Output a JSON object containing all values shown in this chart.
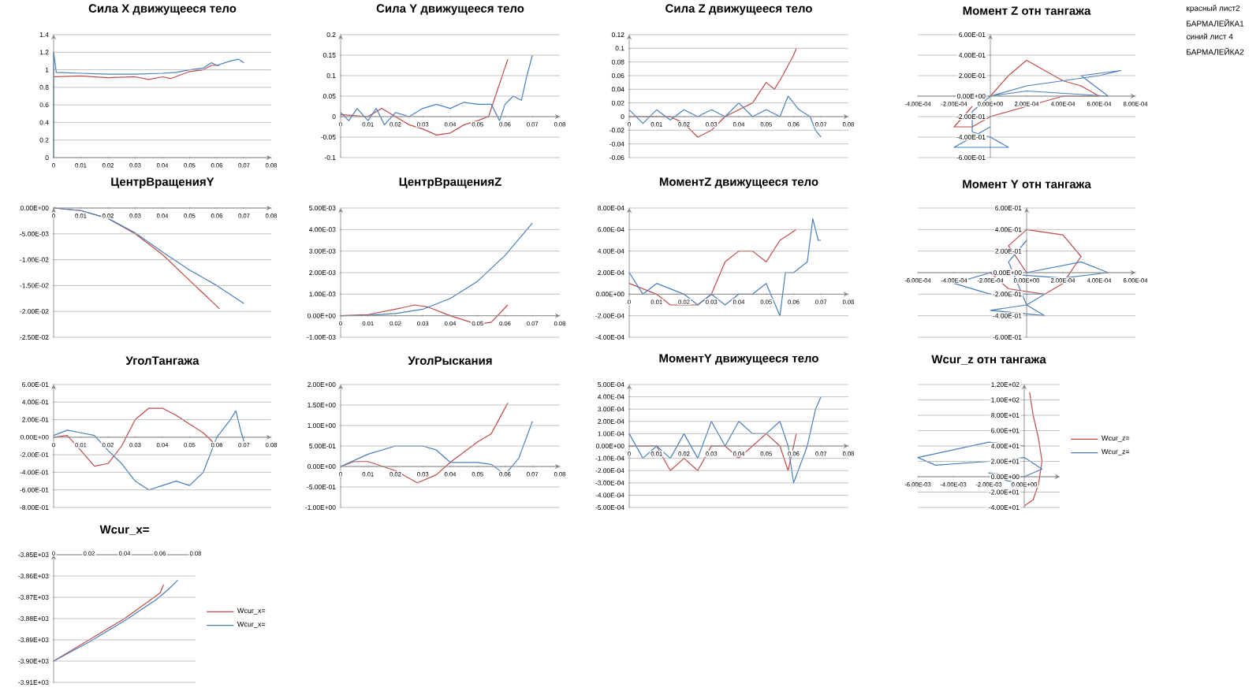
{
  "chart_data": [
    {
      "type": "line",
      "title": "Сила X движущееся тело",
      "xlim": [
        0,
        0.08
      ],
      "ylim": [
        0,
        1.4
      ],
      "xticks": [
        0,
        0.01,
        0.02,
        0.03,
        0.04,
        0.05,
        0.06,
        0.07,
        0.08
      ],
      "yticks": [
        0,
        0.2,
        0.4,
        0.6,
        0.8,
        1,
        1.2,
        1.4
      ],
      "grid": "y",
      "series": [
        {
          "color": "#be4b48",
          "x": [
            0,
            0.01,
            0.02,
            0.03,
            0.035,
            0.04,
            0.043,
            0.05,
            0.055,
            0.058,
            0.061
          ],
          "values": [
            0.92,
            0.93,
            0.91,
            0.92,
            0.89,
            0.92,
            0.9,
            0.98,
            1.0,
            1.05,
            1.05
          ]
        },
        {
          "color": "#4a7ebb",
          "x": [
            0,
            0,
            0.001,
            0.01,
            0.02,
            0.03,
            0.04,
            0.045,
            0.05,
            0.055,
            0.058,
            0.06,
            0.065,
            0.068,
            0.07
          ],
          "values": [
            0,
            1.2,
            0.97,
            0.96,
            0.95,
            0.95,
            0.96,
            0.97,
            1.0,
            1.02,
            1.08,
            1.05,
            1.1,
            1.12,
            1.08
          ]
        }
      ]
    },
    {
      "type": "line",
      "title": "Сила Y движущееся тело",
      "xlim": [
        0,
        0.08
      ],
      "ylim": [
        -0.1,
        0.2
      ],
      "xticks": [
        0,
        0.01,
        0.02,
        0.03,
        0.04,
        0.05,
        0.06,
        0.07,
        0.08
      ],
      "yticks": [
        -0.1,
        -0.05,
        0,
        0.05,
        0.1,
        0.15,
        0.2
      ],
      "grid": "y",
      "series": [
        {
          "color": "#be4b48",
          "x": [
            0,
            0.01,
            0.015,
            0.02,
            0.025,
            0.03,
            0.035,
            0.04,
            0.045,
            0.05,
            0.054,
            0.057,
            0.06,
            0.061
          ],
          "values": [
            0.005,
            0.0,
            0.02,
            0.0,
            -0.02,
            -0.03,
            -0.045,
            -0.04,
            -0.02,
            -0.01,
            0.0,
            0.06,
            0.12,
            0.14
          ]
        },
        {
          "color": "#4a7ebb",
          "x": [
            0,
            0.003,
            0.006,
            0.01,
            0.013,
            0.016,
            0.02,
            0.025,
            0.03,
            0.035,
            0.04,
            0.045,
            0.05,
            0.055,
            0.058,
            0.06,
            0.063,
            0.066,
            0.068,
            0.07
          ],
          "values": [
            0.01,
            -0.01,
            0.02,
            -0.01,
            0.02,
            -0.02,
            0.01,
            0.0,
            0.02,
            0.03,
            0.02,
            0.035,
            0.03,
            0.03,
            -0.01,
            0.03,
            0.05,
            0.04,
            0.1,
            0.15
          ]
        }
      ]
    },
    {
      "type": "line",
      "title": "Сила Z движущееся тело",
      "xlim": [
        0,
        0.08
      ],
      "ylim": [
        -0.06,
        0.12
      ],
      "xticks": [
        0,
        0.01,
        0.02,
        0.03,
        0.04,
        0.05,
        0.06,
        0.07,
        0.08
      ],
      "yticks": [
        -0.06,
        -0.04,
        -0.02,
        0,
        0.02,
        0.04,
        0.06,
        0.08,
        0.1,
        0.12
      ],
      "grid": "y",
      "series": [
        {
          "color": "#be4b48",
          "x": [
            0,
            0.015,
            0.02,
            0.025,
            0.03,
            0.035,
            0.04,
            0.045,
            0.05,
            0.053,
            0.056,
            0.06,
            0.061
          ],
          "values": [
            0.0,
            0.0,
            -0.01,
            -0.03,
            -0.02,
            0.0,
            0.01,
            0.02,
            0.05,
            0.04,
            0.06,
            0.09,
            0.1
          ]
        },
        {
          "color": "#4a7ebb",
          "x": [
            0,
            0.005,
            0.01,
            0.015,
            0.02,
            0.025,
            0.03,
            0.035,
            0.04,
            0.045,
            0.05,
            0.055,
            0.058,
            0.062,
            0.066,
            0.068,
            0.07
          ],
          "values": [
            0.01,
            -0.01,
            0.01,
            -0.005,
            0.01,
            0.0,
            0.01,
            0.0,
            0.02,
            0.0,
            0.01,
            0.0,
            0.03,
            0.01,
            0.0,
            -0.02,
            -0.03
          ]
        }
      ]
    },
    {
      "type": "line",
      "title": "Момент Z отн тангажа",
      "xlim": [
        -0.0004,
        0.0008
      ],
      "ylim": [
        -0.6,
        0.6
      ],
      "xticks": [
        {
          "value": -0.0004,
          "label": "-4.00E-04"
        },
        {
          "value": -0.0002,
          "label": "-2.00E-04"
        },
        {
          "value": 0,
          "label": "0.00E+00"
        },
        {
          "value": 0.0002,
          "label": "2.00E-04"
        },
        {
          "value": 0.0004,
          "label": "4.00E-04"
        },
        {
          "value": 0.0006,
          "label": "6.00E-04"
        },
        {
          "value": 0.0008,
          "label": "8.00E-04"
        }
      ],
      "yticks": [
        {
          "value": -0.6,
          "label": "-6.00E-01"
        },
        {
          "value": -0.4,
          "label": "-4.00E-01"
        },
        {
          "value": -0.2,
          "label": "-2.00E-01"
        },
        {
          "value": 0,
          "label": "0.00E+00"
        },
        {
          "value": 0.2,
          "label": "2.00E-01"
        },
        {
          "value": 0.4,
          "label": "4.00E-01"
        },
        {
          "value": 0.6,
          "label": "6.00E-01"
        }
      ],
      "grid": "y",
      "series": [
        {
          "color": "#be4b48",
          "x": [
            0,
            0.0001,
            0.0002,
            0.0003,
            0.0004,
            0.0005,
            0.0006,
            0.0004,
            0.0002,
            0,
            -0.0001,
            -0.0002,
            -0.0001
          ],
          "values": [
            0,
            0.2,
            0.35,
            0.25,
            0.15,
            0.1,
            0.0,
            0.0,
            -0.1,
            -0.2,
            -0.3,
            -0.3,
            -0.1
          ]
        },
        {
          "color": "#4a7ebb",
          "x": [
            0,
            0.0002,
            0.0004,
            0.0006,
            0.00072,
            0.0005,
            0.00065,
            0.0002,
            0,
            -0.0001,
            -0.0001,
            0,
            0.0001,
            -0.0002,
            0
          ],
          "values": [
            0,
            0.1,
            0.15,
            0.2,
            0.25,
            0.2,
            0.0,
            0.05,
            0,
            -0.15,
            -0.35,
            -0.4,
            -0.5,
            -0.5,
            -0.3
          ]
        }
      ]
    },
    {
      "type": "line",
      "title": "ЦентрВращенияY",
      "xlim": [
        0,
        0.08
      ],
      "ylim": [
        -0.025,
        0
      ],
      "xticks": [
        0,
        0.01,
        0.02,
        0.03,
        0.04,
        0.05,
        0.06,
        0.07,
        0.08
      ],
      "yticks": [
        {
          "value": -0.025,
          "label": "-2.50E-02"
        },
        {
          "value": -0.02,
          "label": "-2.00E-02"
        },
        {
          "value": -0.015,
          "label": "-1.50E-02"
        },
        {
          "value": -0.01,
          "label": "-1.00E-02"
        },
        {
          "value": -0.005,
          "label": "-5.00E-03"
        },
        {
          "value": 0,
          "label": "0.00E+00"
        }
      ],
      "grid": "y",
      "series": [
        {
          "color": "#be4b48",
          "x": [
            0,
            0.01,
            0.02,
            0.03,
            0.04,
            0.05,
            0.061
          ],
          "values": [
            0,
            -0.0005,
            -0.002,
            -0.005,
            -0.009,
            -0.014,
            -0.0195
          ]
        },
        {
          "color": "#4a7ebb",
          "x": [
            0,
            0.01,
            0.02,
            0.03,
            0.04,
            0.05,
            0.06,
            0.07
          ],
          "values": [
            0,
            -0.0005,
            -0.002,
            -0.0048,
            -0.0085,
            -0.012,
            -0.015,
            -0.0185
          ]
        }
      ]
    },
    {
      "type": "line",
      "title": "ЦентрВращенияZ",
      "xlim": [
        0,
        0.08
      ],
      "ylim": [
        -0.001,
        0.005
      ],
      "xticks": [
        0,
        0.01,
        0.02,
        0.03,
        0.04,
        0.05,
        0.06,
        0.07,
        0.08
      ],
      "yticks": [
        {
          "value": -0.001,
          "label": "-1.00E-03"
        },
        {
          "value": 0,
          "label": "0.00E+00"
        },
        {
          "value": 0.001,
          "label": "1.00E-03"
        },
        {
          "value": 0.002,
          "label": "2.00E-03"
        },
        {
          "value": 0.003,
          "label": "3.00E-03"
        },
        {
          "value": 0.004,
          "label": "4.00E-03"
        },
        {
          "value": 0.005,
          "label": "5.00E-03"
        }
      ],
      "grid": "y",
      "series": [
        {
          "color": "#be4b48",
          "x": [
            0,
            0.01,
            0.02,
            0.027,
            0.032,
            0.04,
            0.05,
            0.055,
            0.061
          ],
          "values": [
            0,
            5e-05,
            0.0003,
            0.0005,
            0.0004,
            0.0,
            -0.0004,
            -0.0003,
            0.0005
          ]
        },
        {
          "color": "#4a7ebb",
          "x": [
            0,
            0.01,
            0.02,
            0.03,
            0.04,
            0.05,
            0.06,
            0.07
          ],
          "values": [
            0,
            2e-05,
            0.0001,
            0.0003,
            0.0008,
            0.0016,
            0.0028,
            0.0043
          ]
        }
      ]
    },
    {
      "type": "line",
      "title": "МоментZ движущееся тело",
      "xlim": [
        0,
        0.08
      ],
      "ylim": [
        -0.0004,
        0.0008
      ],
      "xticks": [
        0,
        0.01,
        0.02,
        0.03,
        0.04,
        0.05,
        0.06,
        0.07,
        0.08
      ],
      "yticks": [
        {
          "value": -0.0004,
          "label": "-4.00E-04"
        },
        {
          "value": -0.0002,
          "label": "-2.00E-04"
        },
        {
          "value": 0,
          "label": "0.00E+00"
        },
        {
          "value": 0.0002,
          "label": "2.00E-04"
        },
        {
          "value": 0.0004,
          "label": "4.00E-04"
        },
        {
          "value": 0.0006,
          "label": "6.00E-04"
        },
        {
          "value": 0.0008,
          "label": "8.00E-04"
        }
      ],
      "grid": "y",
      "series": [
        {
          "color": "#be4b48",
          "x": [
            0,
            0.01,
            0.015,
            0.02,
            0.025,
            0.03,
            0.035,
            0.04,
            0.045,
            0.05,
            0.055,
            0.061
          ],
          "values": [
            0.0001,
            0.0,
            -0.0001,
            -0.0001,
            -0.0001,
            0.0,
            0.0003,
            0.0004,
            0.0004,
            0.0003,
            0.0005,
            0.0006
          ]
        },
        {
          "color": "#4a7ebb",
          "x": [
            0,
            0.005,
            0.01,
            0.02,
            0.025,
            0.03,
            0.035,
            0.04,
            0.045,
            0.05,
            0.055,
            0.057,
            0.06,
            0.065,
            0.067,
            0.069,
            0.07
          ],
          "values": [
            0.0002,
            0.0,
            0.0001,
            0.0,
            -0.0001,
            0.0,
            -0.0001,
            0.0,
            0.0,
            0.0001,
            -0.0002,
            0.0002,
            0.0002,
            0.0003,
            0.0007,
            0.0005,
            0.0005
          ]
        }
      ]
    },
    {
      "type": "line",
      "title": "Момент Y  отн тангажа",
      "xlim": [
        -0.0006,
        0.0006
      ],
      "ylim": [
        -0.6,
        0.6
      ],
      "xticks": [
        {
          "value": -0.0006,
          "label": "-6.00E-04"
        },
        {
          "value": -0.0004,
          "label": "-4.00E-04"
        },
        {
          "value": -0.0002,
          "label": "-2.00E-04"
        },
        {
          "value": 0,
          "label": "0.00E+00"
        },
        {
          "value": 0.0002,
          "label": "2.00E-04"
        },
        {
          "value": 0.0004,
          "label": "4.00E-04"
        },
        {
          "value": 0.0006,
          "label": "6.00E-04"
        }
      ],
      "yticks": [
        {
          "value": -0.6,
          "label": "-6.00E-01"
        },
        {
          "value": -0.4,
          "label": "-4.00E-01"
        },
        {
          "value": -0.2,
          "label": "-2.00E-01"
        },
        {
          "value": 0,
          "label": "0.00E+00"
        },
        {
          "value": 0.2,
          "label": "2.00E-01"
        },
        {
          "value": 0.4,
          "label": "4.00E-01"
        },
        {
          "value": 0.6,
          "label": "6.00E-01"
        }
      ],
      "grid": "y",
      "series": [
        {
          "color": "#be4b48",
          "x": [
            0,
            -0.0001,
            0,
            0.0002,
            0.0003,
            0.0002,
            0.0001,
            -0.0001,
            -0.0002
          ],
          "values": [
            0,
            0.25,
            0.4,
            0.35,
            0.15,
            -0.1,
            -0.2,
            -0.15,
            0
          ]
        },
        {
          "color": "#4a7ebb",
          "x": [
            0,
            0.0003,
            0.00045,
            0.0002,
            -0.0002,
            -0.0004,
            -0.0002,
            0.0001,
            0,
            -0.0002,
            0.0001,
            0,
            -0.0001,
            0
          ],
          "values": [
            0,
            0.1,
            0,
            -0.05,
            0,
            -0.1,
            -0.2,
            -0.2,
            -0.3,
            -0.35,
            -0.4,
            -0.3,
            0.1,
            0.3
          ]
        }
      ]
    },
    {
      "type": "line",
      "title": "УголТангажа",
      "xlim": [
        0,
        0.08
      ],
      "ylim": [
        -0.8,
        0.6
      ],
      "xticks": [
        0,
        0.01,
        0.02,
        0.03,
        0.04,
        0.05,
        0.06,
        0.07,
        0.08
      ],
      "yticks": [
        {
          "value": -0.8,
          "label": "-8.00E-01"
        },
        {
          "value": -0.6,
          "label": "-6.00E-01"
        },
        {
          "value": -0.4,
          "label": "-4.00E-01"
        },
        {
          "value": -0.2,
          "label": "-2.00E-01"
        },
        {
          "value": 0,
          "label": "0.00E+00"
        },
        {
          "value": 0.2,
          "label": "2.00E-01"
        },
        {
          "value": 0.4,
          "label": "4.00E-01"
        },
        {
          "value": 0.6,
          "label": "6.00E-01"
        }
      ],
      "grid": "y",
      "series": [
        {
          "color": "#be4b48",
          "x": [
            0,
            0.005,
            0.01,
            0.015,
            0.02,
            0.025,
            0.03,
            0.035,
            0.04,
            0.045,
            0.05,
            0.055,
            0.06
          ],
          "values": [
            0,
            0.02,
            -0.15,
            -0.33,
            -0.3,
            -0.1,
            0.2,
            0.33,
            0.33,
            0.25,
            0.15,
            0.05,
            -0.1
          ]
        },
        {
          "color": "#4a7ebb",
          "x": [
            0,
            0.005,
            0.01,
            0.015,
            0.02,
            0.025,
            0.03,
            0.035,
            0.04,
            0.045,
            0.05,
            0.055,
            0.06,
            0.065,
            0.067,
            0.069,
            0.07
          ],
          "values": [
            0.02,
            0.08,
            0.05,
            0.02,
            -0.15,
            -0.3,
            -0.5,
            -0.6,
            -0.55,
            -0.5,
            -0.55,
            -0.4,
            0,
            0.2,
            0.3,
            0.05,
            -0.05
          ]
        }
      ]
    },
    {
      "type": "line",
      "title": "УголРыскания",
      "xlim": [
        0,
        0.08
      ],
      "ylim": [
        -1,
        2
      ],
      "xticks": [
        0,
        0.01,
        0.02,
        0.03,
        0.04,
        0.05,
        0.06,
        0.07,
        0.08
      ],
      "yticks": [
        {
          "value": -1,
          "label": "-1.00E+00"
        },
        {
          "value": -0.5,
          "label": "-5.00E-01"
        },
        {
          "value": 0,
          "label": "0.00E+00"
        },
        {
          "value": 0.5,
          "label": "5.00E-01"
        },
        {
          "value": 1,
          "label": "1.00E+00"
        },
        {
          "value": 1.5,
          "label": "1.50E+00"
        },
        {
          "value": 2,
          "label": "2.00E+00"
        }
      ],
      "grid": "y",
      "series": [
        {
          "color": "#be4b48",
          "x": [
            0,
            0.005,
            0.01,
            0.02,
            0.028,
            0.035,
            0.04,
            0.05,
            0.055,
            0.061
          ],
          "values": [
            0,
            0.12,
            0.12,
            -0.1,
            -0.4,
            -0.2,
            0.1,
            0.6,
            0.8,
            1.55
          ]
        },
        {
          "color": "#4a7ebb",
          "x": [
            0,
            0.01,
            0.02,
            0.03,
            0.035,
            0.04,
            0.05,
            0.055,
            0.06,
            0.065,
            0.07
          ],
          "values": [
            0,
            0.3,
            0.5,
            0.5,
            0.4,
            0.1,
            0.1,
            0.05,
            -0.2,
            0.2,
            1.1
          ]
        }
      ]
    },
    {
      "type": "line",
      "title": "МоментY движущееся тело",
      "xlim": [
        0,
        0.08
      ],
      "ylim": [
        -0.0005,
        0.0005
      ],
      "xticks": [
        0,
        0.01,
        0.02,
        0.03,
        0.04,
        0.05,
        0.06,
        0.07,
        0.08
      ],
      "yticks": [
        {
          "value": -0.0005,
          "label": "-5.00E-04"
        },
        {
          "value": -0.0004,
          "label": "-4.00E-04"
        },
        {
          "value": -0.0003,
          "label": "-3.00E-04"
        },
        {
          "value": -0.0002,
          "label": "-2.00E-04"
        },
        {
          "value": -0.0001,
          "label": "-1.00E-04"
        },
        {
          "value": 0,
          "label": "0.00E+00"
        },
        {
          "value": 0.0001,
          "label": "1.00E-04"
        },
        {
          "value": 0.0002,
          "label": "2.00E-04"
        },
        {
          "value": 0.0003,
          "label": "3.00E-04"
        },
        {
          "value": 0.0004,
          "label": "4.00E-04"
        },
        {
          "value": 0.0005,
          "label": "5.00E-04"
        }
      ],
      "grid": "y",
      "series": [
        {
          "color": "#be4b48",
          "x": [
            0,
            0.01,
            0.015,
            0.02,
            0.025,
            0.03,
            0.035,
            0.04,
            0.045,
            0.05,
            0.055,
            0.058,
            0.061
          ],
          "values": [
            0,
            0,
            -0.0002,
            -0.0001,
            -0.0002,
            0,
            0,
            -0.0001,
            0,
            0.0001,
            0,
            -0.0002,
            0.0001
          ]
        },
        {
          "color": "#4a7ebb",
          "x": [
            0,
            0.005,
            0.01,
            0.015,
            0.02,
            0.025,
            0.03,
            0.035,
            0.04,
            0.045,
            0.05,
            0.055,
            0.058,
            0.06,
            0.065,
            0.068,
            0.07
          ],
          "values": [
            0.0001,
            -0.0001,
            0,
            -0.0001,
            0.0001,
            -0.0001,
            0.0002,
            0,
            0.0002,
            0.0001,
            0.0001,
            0.0002,
            0,
            -0.0003,
            0,
            0.0003,
            0.0004
          ]
        }
      ]
    },
    {
      "type": "line",
      "title": "Wcur_z отн тангажа",
      "xlim": [
        -0.006,
        0.002
      ],
      "ylim": [
        -40,
        120
      ],
      "xticks": [
        {
          "value": -0.006,
          "label": "-6.00E-03"
        },
        {
          "value": -0.004,
          "label": "-4.00E-03"
        },
        {
          "value": -0.002,
          "label": "-2.00E-03"
        },
        {
          "value": 0,
          "label": "0.00E+00"
        }
      ],
      "yticks": [
        {
          "value": -40,
          "label": "-4.00E+01"
        },
        {
          "value": -20,
          "label": "-2.00E+01"
        },
        {
          "value": 0,
          "label": "0.00E+00"
        },
        {
          "value": 20,
          "label": "2.00E+01"
        },
        {
          "value": 40,
          "label": "4.00E+01"
        },
        {
          "value": 60,
          "label": "6.00E+01"
        },
        {
          "value": 80,
          "label": "8.00E+01"
        },
        {
          "value": 100,
          "label": "1.00E+02"
        },
        {
          "value": 120,
          "label": "1.20E+02"
        }
      ],
      "grid": "y",
      "legend": "right",
      "series": [
        {
          "name": "Wcur_z=",
          "color": "#be4b48",
          "x": [
            0.0003,
            0.0005,
            0.0008,
            0.001,
            0.0008,
            0.0005,
            0
          ],
          "values": [
            110,
            80,
            50,
            20,
            -10,
            -30,
            -38
          ]
        },
        {
          "name": "Wcur_z=",
          "color": "#4a7ebb",
          "x": [
            0,
            -0.002,
            -0.004,
            -0.006,
            -0.005,
            -0.002,
            0,
            0.001,
            0,
            -0.002,
            -0.001,
            0
          ],
          "values": [
            40,
            45,
            35,
            25,
            15,
            20,
            25,
            10,
            0,
            5,
            -5,
            -10
          ]
        }
      ]
    },
    {
      "type": "line",
      "title": "Wcur_x=",
      "xlim": [
        0,
        0.08
      ],
      "ylim": [
        -3910,
        -3850
      ],
      "xticks": [
        0,
        0.02,
        0.04,
        0.06,
        0.08
      ],
      "yticks": [
        {
          "value": -3910,
          "label": "-3.91E+03"
        },
        {
          "value": -3900,
          "label": "-3.90E+03"
        },
        {
          "value": -3890,
          "label": "-3.89E+03"
        },
        {
          "value": -3880,
          "label": "-3.88E+03"
        },
        {
          "value": -3870,
          "label": "-3.87E+03"
        },
        {
          "value": -3860,
          "label": "-3.86E+03"
        },
        {
          "value": -3850,
          "label": "-3.85E+03"
        }
      ],
      "grid": "y",
      "legend": "right",
      "series": [
        {
          "name": "Wcur_x=",
          "color": "#be4b48",
          "x": [
            0,
            0.02,
            0.04,
            0.06,
            0.062
          ],
          "values": [
            -3900,
            -3890,
            -3880,
            -3868,
            -3864
          ]
        },
        {
          "name": "Wcur_x=",
          "color": "#4a7ebb",
          "x": [
            0,
            0.02,
            0.04,
            0.058,
            0.065,
            0.07
          ],
          "values": [
            -3900,
            -3891,
            -3881,
            -3871,
            -3866,
            -3862
          ]
        }
      ]
    },
    {
      "type": "other",
      "annotations": [
        "красный лист2",
        "БАРМАЛЕЙКА1",
        "синий лист 4",
        "БАРМАЛЕЙКА2"
      ]
    }
  ]
}
